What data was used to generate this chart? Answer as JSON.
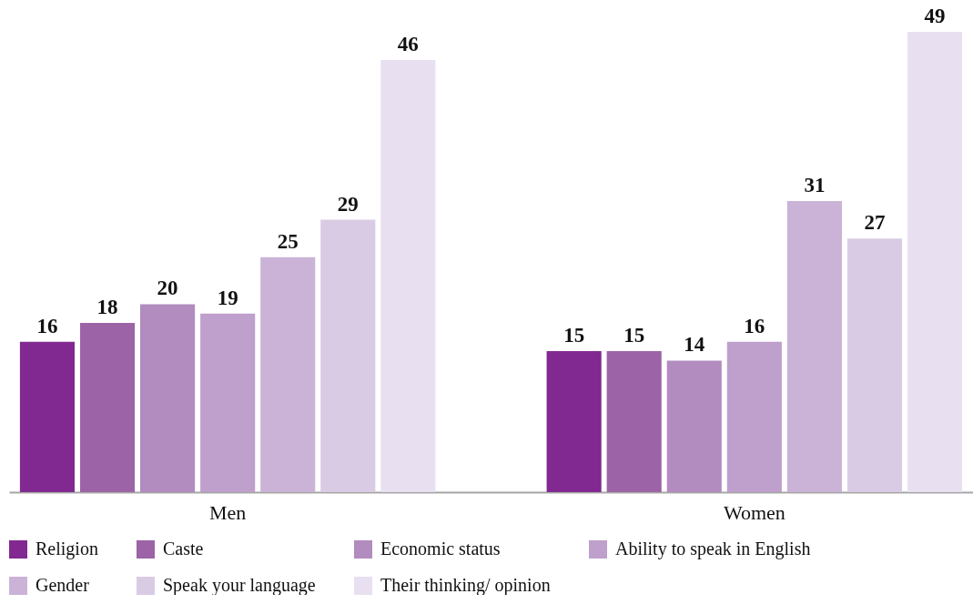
{
  "chart_data": {
    "type": "bar",
    "categories": [
      "Men",
      "Women"
    ],
    "series": [
      {
        "name": "Religion",
        "color": "#812990",
        "values": [
          16,
          15
        ]
      },
      {
        "name": "Caste",
        "color": "#9c63a7",
        "values": [
          18,
          15
        ]
      },
      {
        "name": "Economic status",
        "color": "#b28bbf",
        "values": [
          20,
          14
        ]
      },
      {
        "name": "Ability to speak in English",
        "color": "#bf9fcb",
        "values": [
          19,
          16
        ]
      },
      {
        "name": "Gender",
        "color": "#cbb3d7",
        "values": [
          25,
          31
        ]
      },
      {
        "name": "Speak your language",
        "color": "#dacbe5",
        "values": [
          29,
          27
        ]
      },
      {
        "name": "Their thinking/ opinion",
        "color": "#e8e0f0",
        "values": [
          46,
          49
        ]
      }
    ],
    "data_labels": true,
    "legend": "bottom"
  }
}
